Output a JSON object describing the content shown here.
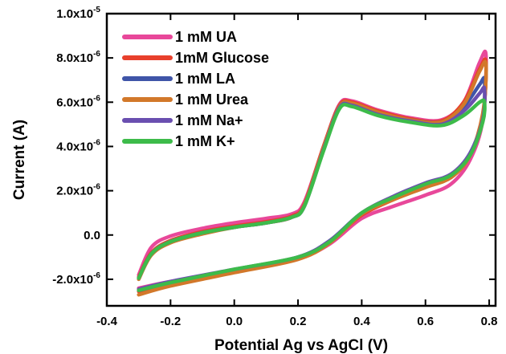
{
  "chart_data": {
    "type": "line",
    "xlabel": "Potential Ag vs AgCl (V)",
    "ylabel": "Current (A)",
    "xlim": [
      -0.4,
      0.82
    ],
    "ylim": [
      -3.2e-06,
      1e-05
    ],
    "x_ticks": [
      {
        "value": -0.4,
        "label": "-0.4"
      },
      {
        "value": -0.2,
        "label": "-0.2"
      },
      {
        "value": 0.0,
        "label": "0.0"
      },
      {
        "value": 0.2,
        "label": "0.2"
      },
      {
        "value": 0.4,
        "label": "0.4"
      },
      {
        "value": 0.6,
        "label": "0.6"
      },
      {
        "value": 0.8,
        "label": "0.8"
      }
    ],
    "y_ticks": [
      {
        "value": -2e-06,
        "base": "-2.0x10",
        "exp": "-6"
      },
      {
        "value": 0.0,
        "base": "0.0",
        "exp": ""
      },
      {
        "value": 2e-06,
        "base": "2.0x10",
        "exp": "-6"
      },
      {
        "value": 4e-06,
        "base": "4.0x10",
        "exp": "-6"
      },
      {
        "value": 6e-06,
        "base": "6.0x10",
        "exp": "-6"
      },
      {
        "value": 8e-06,
        "base": "8.0x10",
        "exp": "-6"
      },
      {
        "value": 1e-05,
        "base": "1.0x10",
        "exp": "-5"
      }
    ],
    "grid": false,
    "legend_position": "top-left",
    "series": [
      {
        "name": "1 mM UA",
        "color": "#e8489a",
        "offset": 0.0,
        "forward": [
          [
            -0.3,
            -2.4e-06
          ],
          [
            -0.2,
            -2.1e-06
          ],
          [
            0.0,
            -1.6e-06
          ],
          [
            0.2,
            -1.05e-06
          ],
          [
            0.3,
            -4e-07
          ],
          [
            0.4,
            7.5e-07
          ],
          [
            0.5,
            1.3e-06
          ],
          [
            0.6,
            1.8e-06
          ],
          [
            0.68,
            2.3e-06
          ],
          [
            0.74,
            3.4e-06
          ],
          [
            0.78,
            5.2e-06
          ],
          [
            0.79,
            8.1e-06
          ]
        ],
        "reverse": [
          [
            0.79,
            8.1e-06
          ],
          [
            0.77,
            7.8e-06
          ],
          [
            0.72,
            6e-06
          ],
          [
            0.65,
            5.2e-06
          ],
          [
            0.55,
            5.3e-06
          ],
          [
            0.45,
            5.65e-06
          ],
          [
            0.37,
            6.05e-06
          ],
          [
            0.33,
            5.9e-06
          ],
          [
            0.28,
            4e-06
          ],
          [
            0.22,
            1.5e-06
          ],
          [
            0.18,
            9.5e-07
          ],
          [
            0.1,
            7.5e-07
          ],
          [
            0.0,
            5.5e-07
          ],
          [
            -0.1,
            3e-07
          ],
          [
            -0.2,
            -5e-08
          ],
          [
            -0.26,
            -5.5e-07
          ],
          [
            -0.3,
            -1.8e-06
          ]
        ]
      },
      {
        "name": "1mM Glucose",
        "color": "#e8402c",
        "offset": -5e-08,
        "forward": [
          [
            -0.3,
            -2.55e-06
          ],
          [
            -0.2,
            -2.2e-06
          ],
          [
            0.0,
            -1.65e-06
          ],
          [
            0.2,
            -1.05e-06
          ],
          [
            0.3,
            -3e-07
          ],
          [
            0.4,
            9e-07
          ],
          [
            0.5,
            1.6e-06
          ],
          [
            0.6,
            2.2e-06
          ],
          [
            0.68,
            2.6e-06
          ],
          [
            0.74,
            3.6e-06
          ],
          [
            0.78,
            5.4e-06
          ],
          [
            0.79,
            7.8e-06
          ]
        ],
        "reverse": [
          [
            0.79,
            7.8e-06
          ],
          [
            0.77,
            7.5e-06
          ],
          [
            0.72,
            6e-06
          ],
          [
            0.65,
            5.15e-06
          ],
          [
            0.55,
            5.25e-06
          ],
          [
            0.45,
            5.6e-06
          ],
          [
            0.37,
            6e-06
          ],
          [
            0.33,
            5.85e-06
          ],
          [
            0.28,
            4e-06
          ],
          [
            0.22,
            1.4e-06
          ],
          [
            0.18,
            8.5e-07
          ],
          [
            0.1,
            6e-07
          ],
          [
            0.0,
            4e-07
          ],
          [
            -0.1,
            1.5e-07
          ],
          [
            -0.2,
            -2.5e-07
          ],
          [
            -0.26,
            -8e-07
          ],
          [
            -0.3,
            -1.9e-06
          ]
        ]
      },
      {
        "name": "1 mM LA",
        "color": "#3f55a8",
        "offset": 0.0,
        "forward": [
          [
            -0.3,
            -2.5e-06
          ],
          [
            -0.2,
            -2.15e-06
          ],
          [
            0.0,
            -1.6e-06
          ],
          [
            0.2,
            -1e-06
          ],
          [
            0.3,
            -2.5e-07
          ],
          [
            0.4,
            1e-06
          ],
          [
            0.5,
            1.7e-06
          ],
          [
            0.6,
            2.3e-06
          ],
          [
            0.68,
            2.7e-06
          ],
          [
            0.74,
            3.7e-06
          ],
          [
            0.78,
            5.3e-06
          ],
          [
            0.785,
            7e-06
          ]
        ],
        "reverse": [
          [
            0.785,
            7e-06
          ],
          [
            0.77,
            6.8e-06
          ],
          [
            0.72,
            5.8e-06
          ],
          [
            0.65,
            5.1e-06
          ],
          [
            0.55,
            5.2e-06
          ],
          [
            0.45,
            5.5e-06
          ],
          [
            0.37,
            5.9e-06
          ],
          [
            0.33,
            5.8e-06
          ],
          [
            0.28,
            3.9e-06
          ],
          [
            0.22,
            1.35e-06
          ],
          [
            0.18,
            8e-07
          ],
          [
            0.1,
            5.5e-07
          ],
          [
            0.0,
            3.5e-07
          ],
          [
            -0.1,
            1e-07
          ],
          [
            -0.2,
            -3e-07
          ],
          [
            -0.26,
            -8.5e-07
          ],
          [
            -0.3,
            -1.95e-06
          ]
        ]
      },
      {
        "name": "1 mM Urea",
        "color": "#d2782a",
        "offset": 0.0,
        "forward": [
          [
            -0.3,
            -2.7e-06
          ],
          [
            -0.2,
            -2.3e-06
          ],
          [
            0.0,
            -1.7e-06
          ],
          [
            0.2,
            -1.1e-06
          ],
          [
            0.3,
            -3.5e-07
          ],
          [
            0.4,
            9.5e-07
          ],
          [
            0.5,
            1.6e-06
          ],
          [
            0.6,
            2.15e-06
          ],
          [
            0.68,
            2.6e-06
          ],
          [
            0.74,
            3.6e-06
          ],
          [
            0.78,
            5.5e-06
          ],
          [
            0.79,
            7.7e-06
          ]
        ],
        "reverse": [
          [
            0.79,
            7.7e-06
          ],
          [
            0.77,
            7.4e-06
          ],
          [
            0.72,
            5.9e-06
          ],
          [
            0.65,
            5.1e-06
          ],
          [
            0.55,
            5.2e-06
          ],
          [
            0.45,
            5.55e-06
          ],
          [
            0.37,
            5.95e-06
          ],
          [
            0.33,
            5.8e-06
          ],
          [
            0.28,
            3.95e-06
          ],
          [
            0.22,
            1.35e-06
          ],
          [
            0.18,
            8e-07
          ],
          [
            0.1,
            5.5e-07
          ],
          [
            0.0,
            3.5e-07
          ],
          [
            -0.1,
            5e-08
          ],
          [
            -0.2,
            -3.5e-07
          ],
          [
            -0.26,
            -9e-07
          ],
          [
            -0.3,
            -2e-06
          ]
        ]
      },
      {
        "name": "1 mM Na+",
        "color": "#6a4fb0",
        "offset": 0.0,
        "forward": [
          [
            -0.3,
            -2.45e-06
          ],
          [
            -0.2,
            -2.1e-06
          ],
          [
            0.0,
            -1.55e-06
          ],
          [
            0.2,
            -1e-06
          ],
          [
            0.3,
            -2.5e-07
          ],
          [
            0.4,
            1e-06
          ],
          [
            0.5,
            1.75e-06
          ],
          [
            0.6,
            2.35e-06
          ],
          [
            0.68,
            2.75e-06
          ],
          [
            0.74,
            3.7e-06
          ],
          [
            0.78,
            5.2e-06
          ],
          [
            0.785,
            6.6e-06
          ]
        ],
        "reverse": [
          [
            0.785,
            6.6e-06
          ],
          [
            0.77,
            6.4e-06
          ],
          [
            0.72,
            5.6e-06
          ],
          [
            0.65,
            5e-06
          ],
          [
            0.55,
            5.15e-06
          ],
          [
            0.45,
            5.45e-06
          ],
          [
            0.37,
            5.85e-06
          ],
          [
            0.33,
            5.75e-06
          ],
          [
            0.28,
            3.85e-06
          ],
          [
            0.22,
            1.3e-06
          ],
          [
            0.18,
            8e-07
          ],
          [
            0.1,
            5.5e-07
          ],
          [
            0.0,
            3.5e-07
          ],
          [
            -0.1,
            1e-07
          ],
          [
            -0.2,
            -3e-07
          ],
          [
            -0.26,
            -8.5e-07
          ],
          [
            -0.3,
            -1.95e-06
          ]
        ]
      },
      {
        "name": "1 mM K+",
        "color": "#3dbb4a",
        "offset": 0.0,
        "forward": [
          [
            -0.3,
            -2.5e-06
          ],
          [
            -0.2,
            -2.15e-06
          ],
          [
            0.0,
            -1.55e-06
          ],
          [
            0.2,
            -1e-06
          ],
          [
            0.3,
            -3e-07
          ],
          [
            0.4,
            1e-06
          ],
          [
            0.5,
            1.7e-06
          ],
          [
            0.6,
            2.3e-06
          ],
          [
            0.68,
            2.7e-06
          ],
          [
            0.74,
            3.6e-06
          ],
          [
            0.78,
            5.1e-06
          ],
          [
            0.785,
            6e-06
          ]
        ],
        "reverse": [
          [
            0.785,
            6e-06
          ],
          [
            0.77,
            6e-06
          ],
          [
            0.72,
            5.4e-06
          ],
          [
            0.65,
            4.95e-06
          ],
          [
            0.55,
            5.1e-06
          ],
          [
            0.45,
            5.4e-06
          ],
          [
            0.37,
            5.8e-06
          ],
          [
            0.33,
            5.7e-06
          ],
          [
            0.28,
            3.8e-06
          ],
          [
            0.22,
            1.3e-06
          ],
          [
            0.18,
            8e-07
          ],
          [
            0.1,
            5.5e-07
          ],
          [
            0.0,
            3.5e-07
          ],
          [
            -0.1,
            1e-07
          ],
          [
            -0.2,
            -3e-07
          ],
          [
            -0.26,
            -8.5e-07
          ],
          [
            -0.3,
            -1.95e-06
          ]
        ]
      }
    ]
  }
}
